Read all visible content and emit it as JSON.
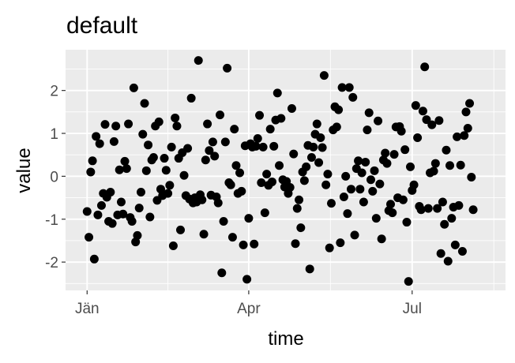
{
  "chart_data": {
    "type": "scatter",
    "title": "default",
    "xlabel": "time",
    "ylabel": "value",
    "x_ticks": [
      {
        "label": "Jän",
        "day": 0
      },
      {
        "label": "Apr",
        "day": 90
      },
      {
        "label": "Jul",
        "day": 181
      }
    ],
    "y_ticks": [
      {
        "label": "-2",
        "value": -2
      },
      {
        "label": "-1",
        "value": -1
      },
      {
        "label": "0",
        "value": 0
      },
      {
        "label": "1",
        "value": 1
      },
      {
        "label": "2",
        "value": 2
      }
    ],
    "xlim_days": [
      -12,
      233
    ],
    "ylim": [
      -2.66,
      2.95
    ],
    "grid": true,
    "panel_color": "#EBEBEB",
    "point_color": "#000000",
    "points": [
      {
        "x": "2020-01-01",
        "y": -0.82
      },
      {
        "x": "2020-01-02",
        "y": -1.42
      },
      {
        "x": "2020-01-03",
        "y": 0.1
      },
      {
        "x": "2020-01-04",
        "y": 0.36
      },
      {
        "x": "2020-01-05",
        "y": -1.93
      },
      {
        "x": "2020-01-06",
        "y": 0.93
      },
      {
        "x": "2020-01-07",
        "y": -0.9
      },
      {
        "x": "2020-01-08",
        "y": 0.76
      },
      {
        "x": "2020-01-09",
        "y": -0.68
      },
      {
        "x": "2020-01-10",
        "y": -0.4
      },
      {
        "x": "2020-01-11",
        "y": 1.21
      },
      {
        "x": "2020-01-12",
        "y": -0.49
      },
      {
        "x": "2020-01-13",
        "y": -1.05
      },
      {
        "x": "2020-01-14",
        "y": -0.37
      },
      {
        "x": "2020-01-15",
        "y": -1.1
      },
      {
        "x": "2020-01-16",
        "y": 0.81
      },
      {
        "x": "2020-01-17",
        "y": 1.17
      },
      {
        "x": "2020-01-18",
        "y": -0.9
      },
      {
        "x": "2020-01-19",
        "y": 0.15
      },
      {
        "x": "2020-01-20",
        "y": -0.6
      },
      {
        "x": "2020-01-21",
        "y": -0.88
      },
      {
        "x": "2020-01-22",
        "y": 0.35
      },
      {
        "x": "2020-01-23",
        "y": 0.18
      },
      {
        "x": "2020-01-24",
        "y": 1.22
      },
      {
        "x": "2020-01-25",
        "y": -0.96
      },
      {
        "x": "2020-01-26",
        "y": -1.05
      },
      {
        "x": "2020-01-27",
        "y": 2.06
      },
      {
        "x": "2020-01-28",
        "y": -1.53
      },
      {
        "x": "2020-01-29",
        "y": -1.38
      },
      {
        "x": "2020-01-30",
        "y": -0.74
      },
      {
        "x": "2020-01-31",
        "y": -0.37
      },
      {
        "x": "2020-02-01",
        "y": 0.98
      },
      {
        "x": "2020-02-02",
        "y": 1.7
      },
      {
        "x": "2020-02-03",
        "y": 0.13
      },
      {
        "x": "2020-02-04",
        "y": 0.73
      },
      {
        "x": "2020-02-05",
        "y": -0.95
      },
      {
        "x": "2020-02-06",
        "y": 0.38
      },
      {
        "x": "2020-02-07",
        "y": 0.44
      },
      {
        "x": "2020-02-08",
        "y": 1.17
      },
      {
        "x": "2020-02-09",
        "y": -0.56
      },
      {
        "x": "2020-02-10",
        "y": 1.27
      },
      {
        "x": "2020-02-11",
        "y": -0.3
      },
      {
        "x": "2020-02-12",
        "y": -0.45
      },
      {
        "x": "2020-02-13",
        "y": 0.42
      },
      {
        "x": "2020-02-14",
        "y": 0.14
      },
      {
        "x": "2020-02-15",
        "y": -0.4
      },
      {
        "x": "2020-02-16",
        "y": -0.21
      },
      {
        "x": "2020-02-17",
        "y": 0.68
      },
      {
        "x": "2020-02-18",
        "y": -1.62
      },
      {
        "x": "2020-02-19",
        "y": 1.36
      },
      {
        "x": "2020-02-20",
        "y": 1.17
      },
      {
        "x": "2020-02-21",
        "y": 0.42
      },
      {
        "x": "2020-02-22",
        "y": -1.25
      },
      {
        "x": "2020-02-23",
        "y": 0.55
      },
      {
        "x": "2020-02-24",
        "y": 0.02
      },
      {
        "x": "2020-02-25",
        "y": -0.45
      },
      {
        "x": "2020-02-26",
        "y": 0.65
      },
      {
        "x": "2020-02-27",
        "y": -0.53
      },
      {
        "x": "2020-02-28",
        "y": 1.82
      },
      {
        "x": "2020-02-29",
        "y": -0.62
      },
      {
        "x": "2020-03-01",
        "y": -0.5
      },
      {
        "x": "2020-03-02",
        "y": -0.6
      },
      {
        "x": "2020-03-03",
        "y": 2.7
      },
      {
        "x": "2020-03-04",
        "y": -0.43
      },
      {
        "x": "2020-03-05",
        "y": -0.55
      },
      {
        "x": "2020-03-06",
        "y": -1.35
      },
      {
        "x": "2020-03-07",
        "y": 0.38
      },
      {
        "x": "2020-03-08",
        "y": 1.22
      },
      {
        "x": "2020-03-09",
        "y": 0.6
      },
      {
        "x": "2020-03-10",
        "y": -0.44
      },
      {
        "x": "2020-03-11",
        "y": 0.8
      },
      {
        "x": "2020-03-12",
        "y": 0.47
      },
      {
        "x": "2020-03-13",
        "y": -0.48
      },
      {
        "x": "2020-03-14",
        "y": -0.62
      },
      {
        "x": "2020-03-15",
        "y": 1.43
      },
      {
        "x": "2020-03-16",
        "y": -2.25
      },
      {
        "x": "2020-03-17",
        "y": -1.05
      },
      {
        "x": "2020-03-18",
        "y": 0.8
      },
      {
        "x": "2020-03-19",
        "y": 2.52
      },
      {
        "x": "2020-03-20",
        "y": -0.15
      },
      {
        "x": "2020-03-21",
        "y": -0.2
      },
      {
        "x": "2020-03-22",
        "y": -1.42
      },
      {
        "x": "2020-03-23",
        "y": 1.1
      },
      {
        "x": "2020-03-24",
        "y": 0.25
      },
      {
        "x": "2020-03-25",
        "y": -0.4
      },
      {
        "x": "2020-03-26",
        "y": 0.08
      },
      {
        "x": "2020-03-27",
        "y": -0.35
      },
      {
        "x": "2020-03-28",
        "y": -1.6
      },
      {
        "x": "2020-03-29",
        "y": 0.71
      },
      {
        "x": "2020-03-30",
        "y": -2.4
      },
      {
        "x": "2020-03-31",
        "y": -0.98
      },
      {
        "x": "2020-04-01",
        "y": 0.76
      },
      {
        "x": "2020-04-02",
        "y": 0.68
      },
      {
        "x": "2020-04-03",
        "y": -1.58
      },
      {
        "x": "2020-04-04",
        "y": 0.7
      },
      {
        "x": "2020-04-05",
        "y": 0.88
      },
      {
        "x": "2020-04-06",
        "y": 1.42
      },
      {
        "x": "2020-04-07",
        "y": -0.15
      },
      {
        "x": "2020-04-08",
        "y": 0.68
      },
      {
        "x": "2020-04-09",
        "y": -0.85
      },
      {
        "x": "2020-04-10",
        "y": 0.05
      },
      {
        "x": "2020-04-11",
        "y": -0.21
      },
      {
        "x": "2020-04-12",
        "y": 1.1
      },
      {
        "x": "2020-04-13",
        "y": -0.13
      },
      {
        "x": "2020-04-14",
        "y": 0.7
      },
      {
        "x": "2020-04-15",
        "y": 1.31
      },
      {
        "x": "2020-04-16",
        "y": 1.94
      },
      {
        "x": "2020-04-17",
        "y": 0.25
      },
      {
        "x": "2020-04-18",
        "y": 1.35
      },
      {
        "x": "2020-04-19",
        "y": -0.08
      },
      {
        "x": "2020-04-20",
        "y": -0.25
      },
      {
        "x": "2020-04-21",
        "y": -0.12
      },
      {
        "x": "2020-04-22",
        "y": -0.4
      },
      {
        "x": "2020-04-23",
        "y": -0.26
      },
      {
        "x": "2020-04-24",
        "y": 1.58
      },
      {
        "x": "2020-04-25",
        "y": 0.52
      },
      {
        "x": "2020-04-26",
        "y": -1.57
      },
      {
        "x": "2020-04-27",
        "y": -0.75
      },
      {
        "x": "2020-04-28",
        "y": -0.55
      },
      {
        "x": "2020-04-29",
        "y": -1.2
      },
      {
        "x": "2020-04-30",
        "y": 0.1
      },
      {
        "x": "2020-05-01",
        "y": -0.1
      },
      {
        "x": "2020-05-02",
        "y": 0.22
      },
      {
        "x": "2020-05-03",
        "y": 0.72
      },
      {
        "x": "2020-05-04",
        "y": -2.16
      },
      {
        "x": "2020-05-05",
        "y": 0.44
      },
      {
        "x": "2020-05-06",
        "y": 0.68
      },
      {
        "x": "2020-05-07",
        "y": 0.98
      },
      {
        "x": "2020-05-08",
        "y": 1.22
      },
      {
        "x": "2020-05-09",
        "y": 0.32
      },
      {
        "x": "2020-05-10",
        "y": 0.9
      },
      {
        "x": "2020-05-11",
        "y": 0.67
      },
      {
        "x": "2020-05-12",
        "y": 2.35
      },
      {
        "x": "2020-05-13",
        "y": -0.2
      },
      {
        "x": "2020-05-14",
        "y": 0.05
      },
      {
        "x": "2020-05-15",
        "y": -1.67
      },
      {
        "x": "2020-05-16",
        "y": -0.63
      },
      {
        "x": "2020-05-17",
        "y": 1.08
      },
      {
        "x": "2020-05-18",
        "y": 1.62
      },
      {
        "x": "2020-05-19",
        "y": 1.15
      },
      {
        "x": "2020-05-20",
        "y": 1.55
      },
      {
        "x": "2020-05-21",
        "y": -1.55
      },
      {
        "x": "2020-05-22",
        "y": 2.07
      },
      {
        "x": "2020-05-23",
        "y": -0.48
      },
      {
        "x": "2020-05-24",
        "y": 0.0
      },
      {
        "x": "2020-05-25",
        "y": -0.87
      },
      {
        "x": "2020-05-26",
        "y": 2.07
      },
      {
        "x": "2020-05-27",
        "y": -0.3
      },
      {
        "x": "2020-05-28",
        "y": 1.84
      },
      {
        "x": "2020-05-29",
        "y": -1.37
      },
      {
        "x": "2020-05-30",
        "y": 0.18
      },
      {
        "x": "2020-05-31",
        "y": 0.36
      },
      {
        "x": "2020-06-01",
        "y": -0.3
      },
      {
        "x": "2020-06-02",
        "y": 0.08
      },
      {
        "x": "2020-06-03",
        "y": -0.6
      },
      {
        "x": "2020-06-04",
        "y": 0.33
      },
      {
        "x": "2020-06-05",
        "y": 1.08
      },
      {
        "x": "2020-06-06",
        "y": 1.48
      },
      {
        "x": "2020-06-07",
        "y": -0.08
      },
      {
        "x": "2020-06-08",
        "y": -0.35
      },
      {
        "x": "2020-06-09",
        "y": 0.13
      },
      {
        "x": "2020-06-10",
        "y": -0.98
      },
      {
        "x": "2020-06-11",
        "y": 1.29
      },
      {
        "x": "2020-06-12",
        "y": -0.18
      },
      {
        "x": "2020-06-13",
        "y": -1.46
      },
      {
        "x": "2020-06-14",
        "y": 0.38
      },
      {
        "x": "2020-06-15",
        "y": 0.54
      },
      {
        "x": "2020-06-16",
        "y": 0.3
      },
      {
        "x": "2020-06-17",
        "y": -0.8
      },
      {
        "x": "2020-06-18",
        "y": -0.65
      },
      {
        "x": "2020-06-19",
        "y": -0.85
      },
      {
        "x": "2020-06-20",
        "y": 0.51
      },
      {
        "x": "2020-06-21",
        "y": 1.15
      },
      {
        "x": "2020-06-22",
        "y": -0.5
      },
      {
        "x": "2020-06-23",
        "y": 1.16
      },
      {
        "x": "2020-06-24",
        "y": 1.05
      },
      {
        "x": "2020-06-25",
        "y": -0.55
      },
      {
        "x": "2020-06-26",
        "y": 0.62
      },
      {
        "x": "2020-06-27",
        "y": -1.07
      },
      {
        "x": "2020-06-28",
        "y": -2.45
      },
      {
        "x": "2020-06-29",
        "y": 0.22
      },
      {
        "x": "2020-06-30",
        "y": -0.33
      },
      {
        "x": "2020-07-01",
        "y": -0.2
      },
      {
        "x": "2020-07-02",
        "y": 1.65
      },
      {
        "x": "2020-07-03",
        "y": 0.9
      },
      {
        "x": "2020-07-04",
        "y": -0.7
      },
      {
        "x": "2020-07-05",
        "y": -0.78
      },
      {
        "x": "2020-07-06",
        "y": 1.52
      },
      {
        "x": "2020-07-07",
        "y": 2.55
      },
      {
        "x": "2020-07-08",
        "y": 1.32
      },
      {
        "x": "2020-07-09",
        "y": -0.75
      },
      {
        "x": "2020-07-10",
        "y": 0.08
      },
      {
        "x": "2020-07-11",
        "y": 1.2
      },
      {
        "x": "2020-07-12",
        "y": 0.12
      },
      {
        "x": "2020-07-13",
        "y": 0.3
      },
      {
        "x": "2020-07-14",
        "y": -0.75
      },
      {
        "x": "2020-07-15",
        "y": 1.3
      },
      {
        "x": "2020-07-16",
        "y": -1.8
      },
      {
        "x": "2020-07-17",
        "y": -0.6
      },
      {
        "x": "2020-07-18",
        "y": -1.12
      },
      {
        "x": "2020-07-19",
        "y": 0.61
      },
      {
        "x": "2020-07-20",
        "y": -1.98
      },
      {
        "x": "2020-07-21",
        "y": 0.25
      },
      {
        "x": "2020-07-22",
        "y": -0.98
      },
      {
        "x": "2020-07-23",
        "y": -0.72
      },
      {
        "x": "2020-07-24",
        "y": -1.6
      },
      {
        "x": "2020-07-25",
        "y": 0.92
      },
      {
        "x": "2020-07-26",
        "y": -0.68
      },
      {
        "x": "2020-07-27",
        "y": 0.26
      },
      {
        "x": "2020-07-28",
        "y": -1.75
      },
      {
        "x": "2020-07-29",
        "y": 0.95
      },
      {
        "x": "2020-07-30",
        "y": 1.5
      },
      {
        "x": "2020-07-31",
        "y": 1.12
      },
      {
        "x": "2020-08-01",
        "y": 1.7
      },
      {
        "x": "2020-08-02",
        "y": -0.02
      },
      {
        "x": "2020-08-03",
        "y": -0.78
      }
    ]
  }
}
